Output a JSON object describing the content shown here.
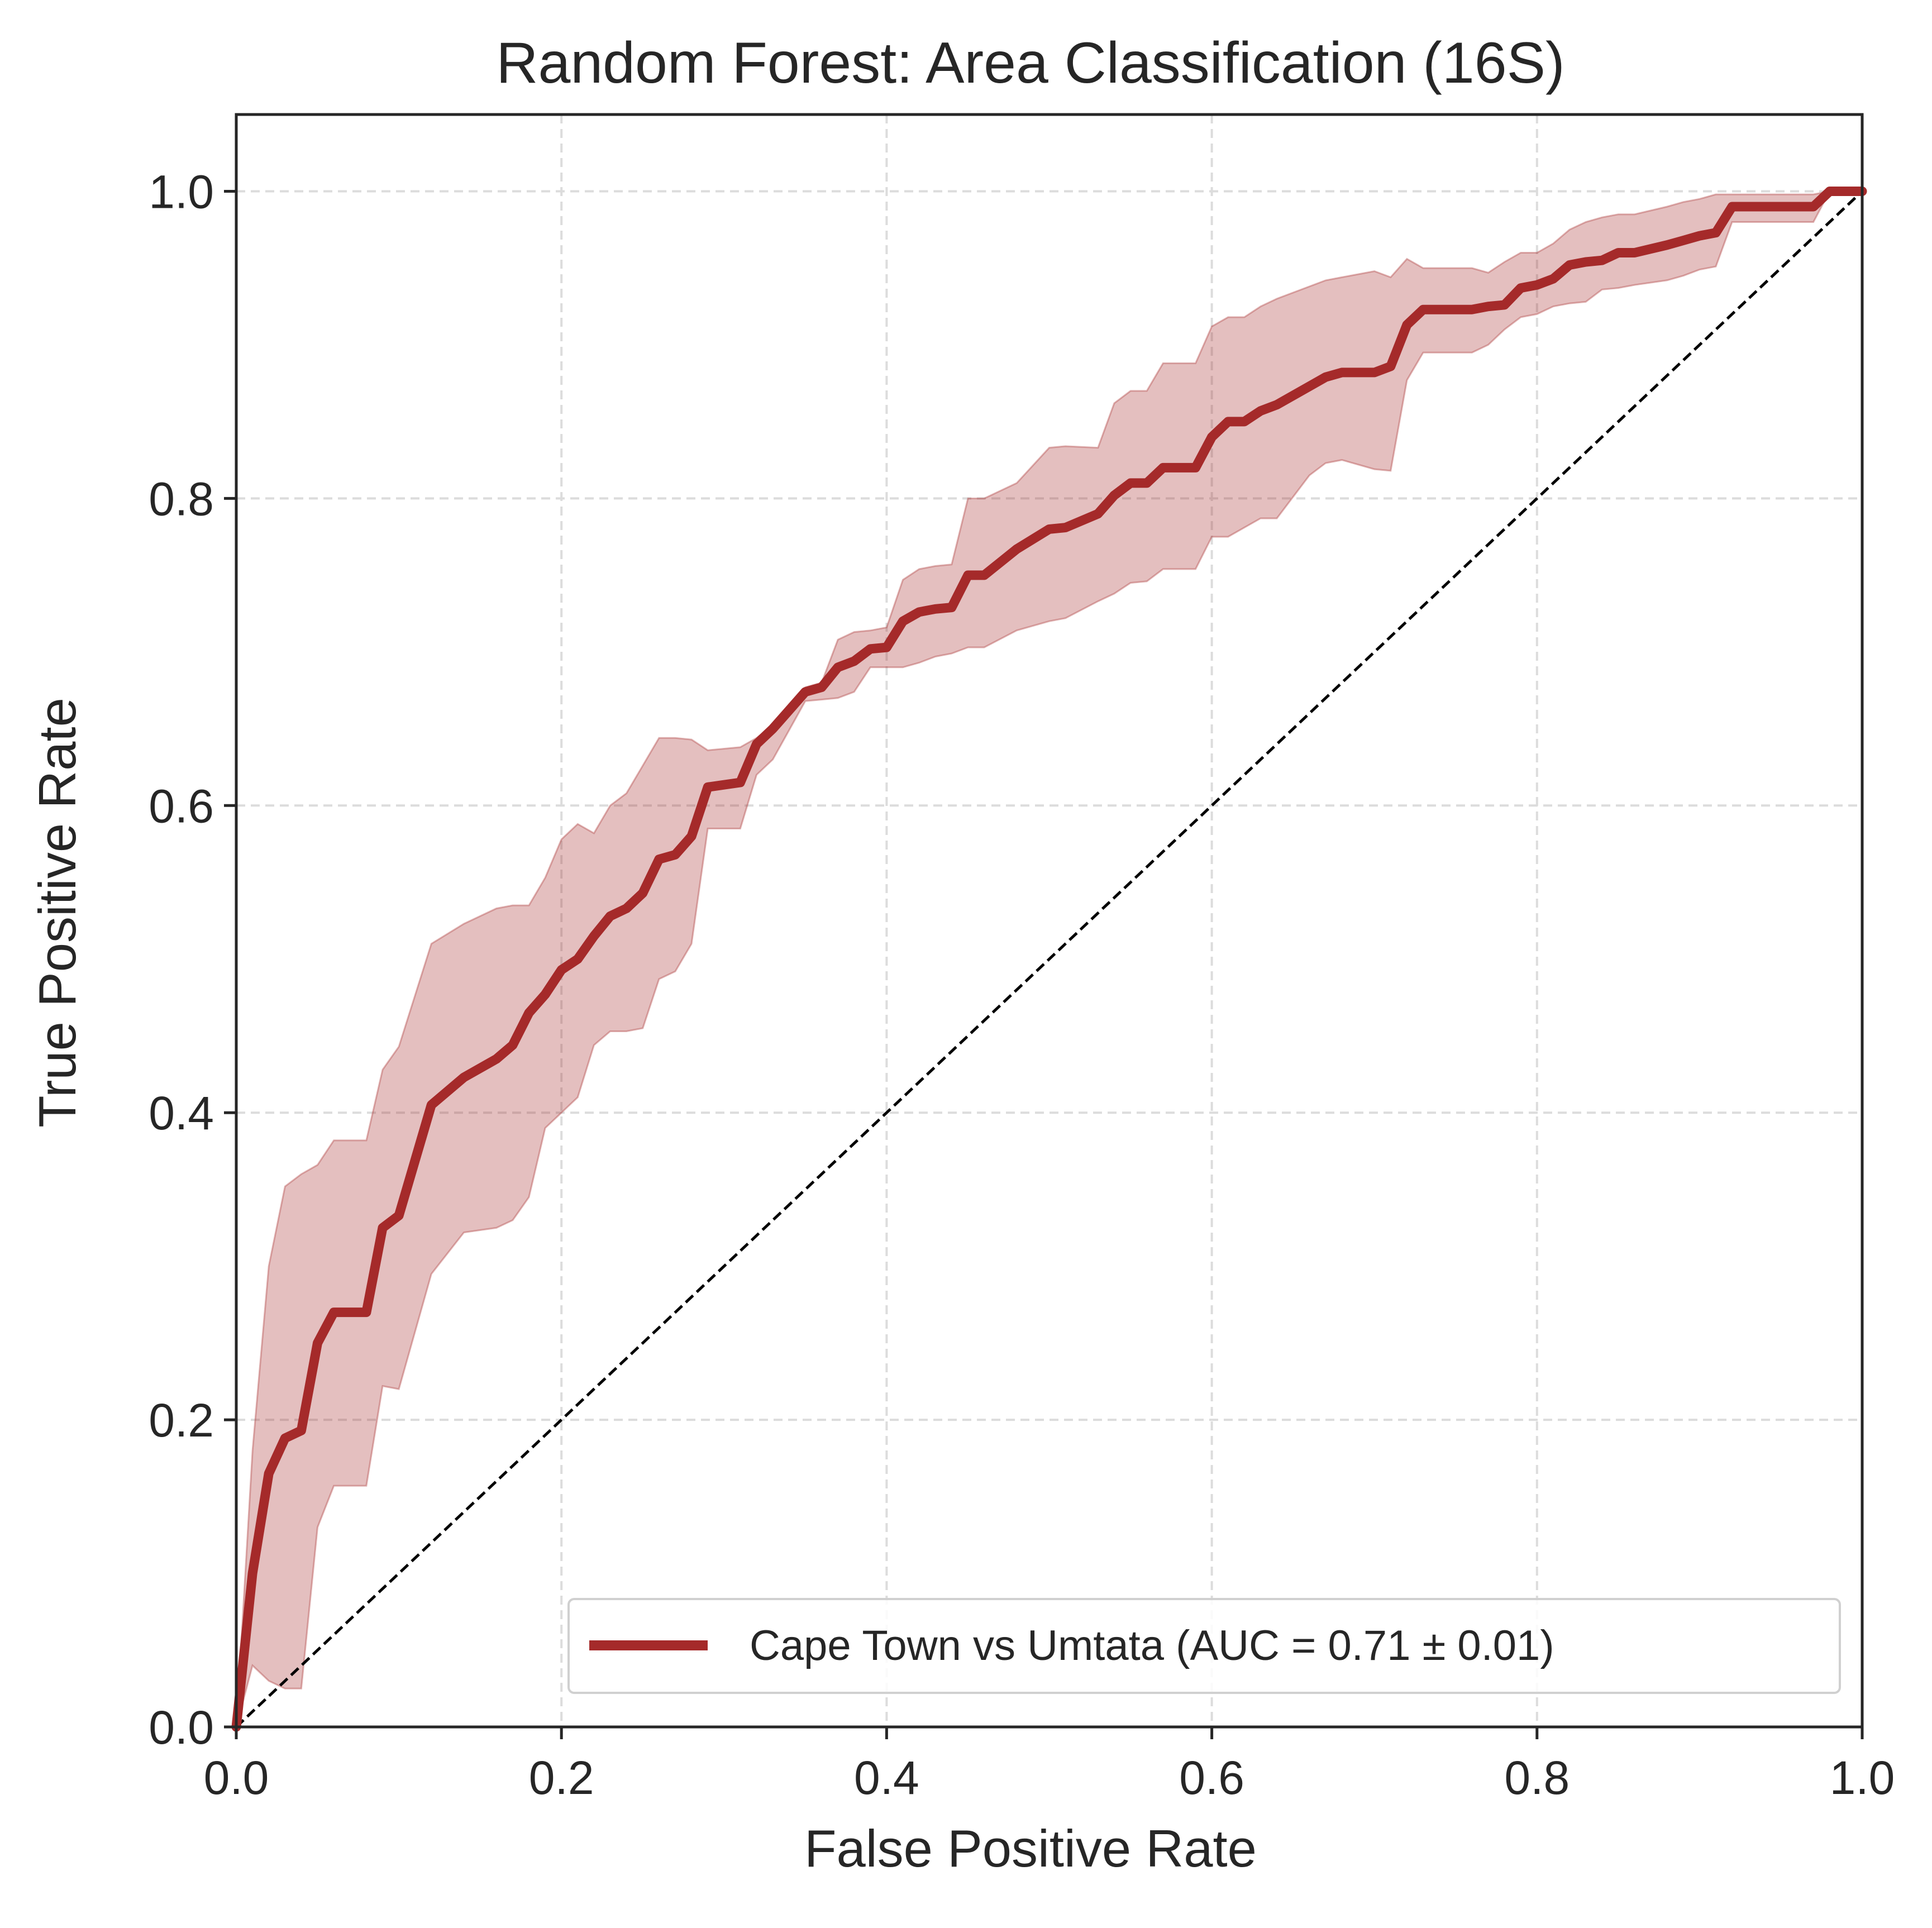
{
  "chart_data": {
    "type": "line",
    "title": "Random Forest: Area Classification (16S)",
    "xlabel": "False Positive Rate",
    "ylabel": "True Positive Rate",
    "xlim": [
      0,
      1
    ],
    "ylim": [
      0,
      1.05
    ],
    "xticks": [
      0,
      0.2,
      0.4,
      0.6,
      0.8,
      1
    ],
    "yticks": [
      0,
      0.2,
      0.4,
      0.6,
      0.8,
      1
    ],
    "xtick_labels": [
      "0.0",
      "0.2",
      "0.4",
      "0.6",
      "0.8",
      "1.0"
    ],
    "ytick_labels": [
      "0.0",
      "0.2",
      "0.4",
      "0.6",
      "0.8",
      "1.0"
    ],
    "grid": true,
    "grid_style": "dashed",
    "legend_position": "lower-right",
    "series": [
      {
        "name": "Cape Town vs Umtata (AUC = 0.71 ± 0.01)",
        "color": "#a52a2a",
        "band_color": "#a52a2a",
        "x": [
          0.0,
          0.01,
          0.02,
          0.03,
          0.04,
          0.05,
          0.06,
          0.08,
          0.09,
          0.1,
          0.12,
          0.14,
          0.16,
          0.17,
          0.18,
          0.19,
          0.2,
          0.21,
          0.22,
          0.23,
          0.24,
          0.25,
          0.26,
          0.27,
          0.28,
          0.29,
          0.31,
          0.32,
          0.33,
          0.35,
          0.36,
          0.37,
          0.38,
          0.39,
          0.4,
          0.41,
          0.42,
          0.43,
          0.44,
          0.45,
          0.46,
          0.48,
          0.5,
          0.51,
          0.53,
          0.54,
          0.55,
          0.56,
          0.57,
          0.59,
          0.6,
          0.61,
          0.62,
          0.63,
          0.64,
          0.66,
          0.67,
          0.68,
          0.7,
          0.71,
          0.72,
          0.73,
          0.76,
          0.77,
          0.78,
          0.79,
          0.8,
          0.81,
          0.82,
          0.83,
          0.84,
          0.85,
          0.86,
          0.88,
          0.89,
          0.9,
          0.91,
          0.92,
          0.97,
          0.98,
          1.0
        ],
        "y": [
          0.0,
          0.1,
          0.165,
          0.188,
          0.193,
          0.25,
          0.27,
          0.27,
          0.325,
          0.333,
          0.405,
          0.423,
          0.435,
          0.444,
          0.465,
          0.477,
          0.493,
          0.5,
          0.515,
          0.528,
          0.533,
          0.543,
          0.565,
          0.568,
          0.58,
          0.612,
          0.615,
          0.64,
          0.65,
          0.674,
          0.677,
          0.69,
          0.694,
          0.702,
          0.703,
          0.72,
          0.726,
          0.728,
          0.729,
          0.75,
          0.75,
          0.767,
          0.78,
          0.781,
          0.79,
          0.802,
          0.81,
          0.81,
          0.82,
          0.82,
          0.84,
          0.85,
          0.85,
          0.857,
          0.861,
          0.873,
          0.879,
          0.882,
          0.882,
          0.886,
          0.913,
          0.923,
          0.923,
          0.925,
          0.926,
          0.937,
          0.939,
          0.943,
          0.952,
          0.954,
          0.955,
          0.96,
          0.96,
          0.965,
          0.968,
          0.971,
          0.973,
          0.99,
          0.99,
          1.0,
          1.0
        ],
        "y_upper": [
          0.0,
          0.18,
          0.3,
          0.352,
          0.36,
          0.366,
          0.382,
          0.382,
          0.428,
          0.443,
          0.51,
          0.523,
          0.533,
          0.535,
          0.535,
          0.553,
          0.578,
          0.588,
          0.582,
          0.6,
          0.608,
          0.626,
          0.644,
          0.644,
          0.643,
          0.636,
          0.638,
          0.644,
          0.652,
          0.677,
          0.68,
          0.708,
          0.713,
          0.714,
          0.716,
          0.747,
          0.754,
          0.756,
          0.757,
          0.8,
          0.8,
          0.81,
          0.833,
          0.834,
          0.833,
          0.862,
          0.87,
          0.87,
          0.888,
          0.888,
          0.912,
          0.918,
          0.918,
          0.925,
          0.93,
          0.938,
          0.942,
          0.944,
          0.948,
          0.944,
          0.956,
          0.95,
          0.95,
          0.947,
          0.954,
          0.96,
          0.96,
          0.966,
          0.975,
          0.98,
          0.983,
          0.985,
          0.985,
          0.99,
          0.993,
          0.995,
          0.998,
          0.998,
          0.998,
          1.0,
          1.0
        ],
        "y_lower": [
          0.0,
          0.04,
          0.03,
          0.025,
          0.025,
          0.13,
          0.157,
          0.157,
          0.222,
          0.22,
          0.295,
          0.322,
          0.325,
          0.33,
          0.345,
          0.39,
          0.4,
          0.41,
          0.444,
          0.453,
          0.453,
          0.455,
          0.487,
          0.492,
          0.51,
          0.585,
          0.585,
          0.62,
          0.63,
          0.668,
          0.669,
          0.67,
          0.674,
          0.69,
          0.69,
          0.69,
          0.693,
          0.697,
          0.699,
          0.703,
          0.703,
          0.714,
          0.72,
          0.722,
          0.733,
          0.738,
          0.745,
          0.746,
          0.754,
          0.754,
          0.775,
          0.775,
          0.781,
          0.787,
          0.787,
          0.815,
          0.823,
          0.825,
          0.819,
          0.818,
          0.877,
          0.895,
          0.895,
          0.9,
          0.91,
          0.918,
          0.92,
          0.925,
          0.927,
          0.928,
          0.936,
          0.937,
          0.939,
          0.942,
          0.945,
          0.949,
          0.951,
          0.98,
          0.98,
          1.0,
          1.0
        ]
      },
      {
        "type": "reference-diagonal",
        "color": "#000000",
        "x": [
          0,
          1
        ],
        "y": [
          0,
          1
        ]
      }
    ]
  }
}
